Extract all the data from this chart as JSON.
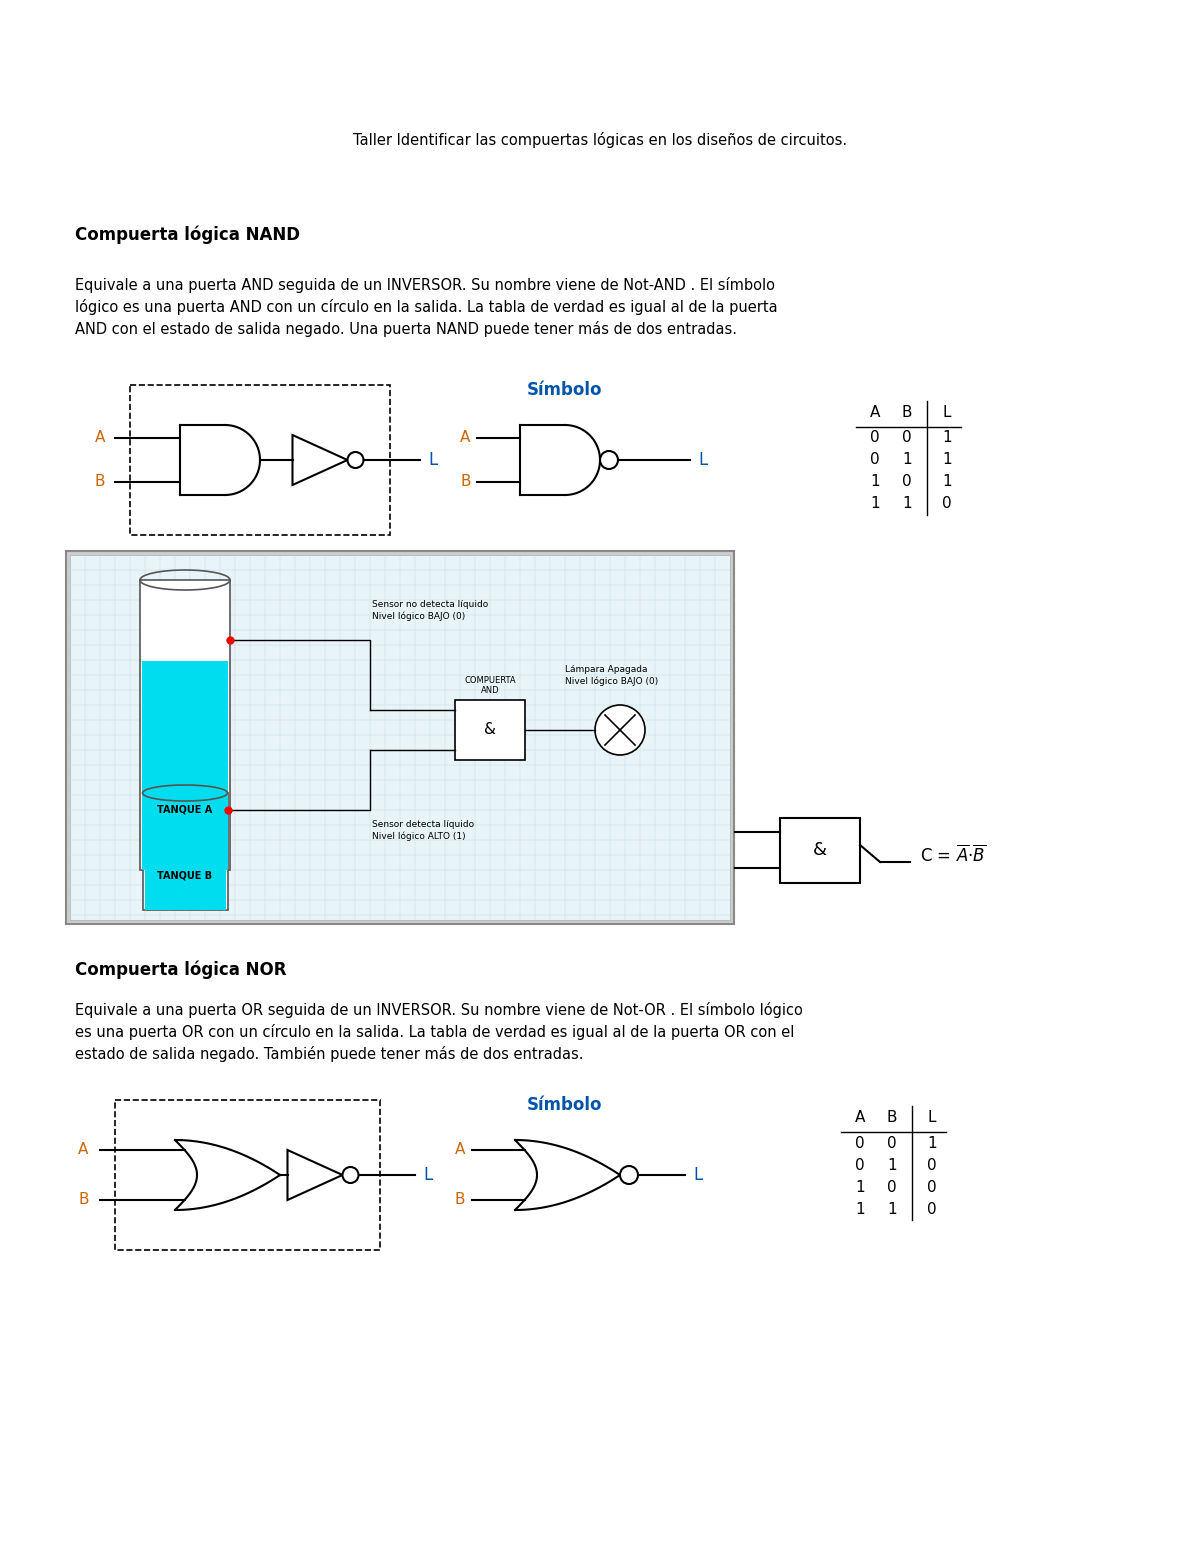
{
  "title": "Taller Identificar las compuertas lógicas en los diseños de circuitos.",
  "nand_heading": "Compuerta lógica NAND",
  "nand_body_line1": "Equivale a una puerta AND seguida de un INVERSOR. Su nombre viene de Not-AND . El símbolo",
  "nand_body_line2": "lógico es una puerta AND con un círculo en la salida. La tabla de verdad es igual al de la puerta",
  "nand_body_line3": "AND con el estado de salida negado. Una puerta NAND puede tener más de dos entradas.",
  "simbolo_label": "Símbolo",
  "nand_truth_header": [
    "A",
    "B",
    "L"
  ],
  "nand_truth_data": [
    [
      "0",
      "0",
      "1"
    ],
    [
      "0",
      "1",
      "1"
    ],
    [
      "1",
      "0",
      "1"
    ],
    [
      "1",
      "1",
      "0"
    ]
  ],
  "nor_heading": "Compuerta lógica NOR",
  "nor_body_line1": "Equivale a una puerta OR seguida de un INVERSOR. Su nombre viene de Not-OR . El símbolo lógico",
  "nor_body_line2": "es una puerta OR con un círculo en la salida. La tabla de verdad es igual al de la puerta OR con el",
  "nor_body_line3": "estado de salida negado. También puede tener más de dos entradas.",
  "nor_simbolo_label": "Símbolo",
  "nor_truth_header": [
    "A",
    "B",
    "L"
  ],
  "nor_truth_data": [
    [
      "0",
      "0",
      "1"
    ],
    [
      "0",
      "1",
      "0"
    ],
    [
      "1",
      "0",
      "0"
    ],
    [
      "1",
      "1",
      "0"
    ]
  ],
  "bg_color": "#ffffff",
  "text_color": "#000000",
  "body_fontsize": 10.5,
  "heading_fontsize": 12,
  "title_fontsize": 10.5,
  "label_color_orange": "#CC6600",
  "label_color_blue": "#0055AA"
}
